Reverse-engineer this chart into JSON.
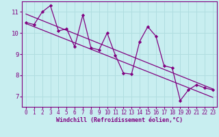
{
  "xlabel": "Windchill (Refroidissement éolien,°C)",
  "bg_color": "#c8eef0",
  "line_color": "#800080",
  "grid_color": "#b0dde0",
  "xlim": [
    -0.5,
    23.5
  ],
  "ylim": [
    6.5,
    11.5
  ],
  "yticks": [
    7,
    8,
    9,
    10,
    11
  ],
  "xticks": [
    0,
    1,
    2,
    3,
    4,
    5,
    6,
    7,
    8,
    9,
    10,
    11,
    12,
    13,
    14,
    15,
    16,
    17,
    18,
    19,
    20,
    21,
    22,
    23
  ],
  "data_x": [
    0,
    1,
    2,
    3,
    4,
    5,
    6,
    7,
    8,
    9,
    10,
    11,
    12,
    13,
    14,
    15,
    16,
    17,
    18,
    19,
    20,
    21,
    22,
    23
  ],
  "data_y": [
    10.5,
    10.4,
    11.0,
    11.3,
    10.1,
    10.2,
    9.35,
    10.85,
    9.3,
    9.2,
    10.0,
    8.95,
    8.1,
    8.05,
    9.6,
    10.3,
    9.85,
    8.45,
    8.35,
    6.8,
    7.3,
    7.55,
    7.4,
    7.3
  ],
  "trend1_x": [
    0,
    23
  ],
  "trend1_y": [
    10.9,
    7.35
  ],
  "trend2_x": [
    0,
    23
  ],
  "trend2_y": [
    10.45,
    6.95
  ]
}
